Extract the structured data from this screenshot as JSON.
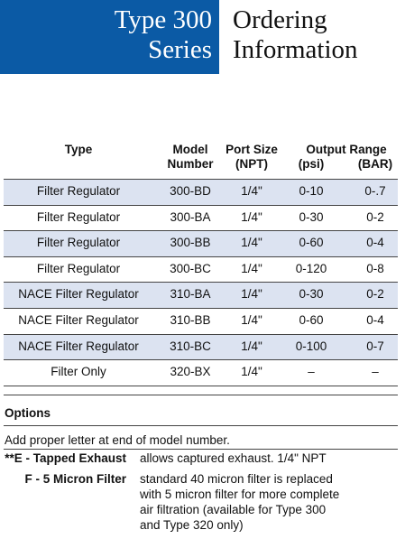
{
  "header": {
    "series_title": [
      "Type 300",
      "Series"
    ],
    "title": [
      "Ordering",
      "Information"
    ]
  },
  "table": {
    "columns": {
      "type": "Type",
      "model": [
        "Model",
        "Number"
      ],
      "port": [
        "Port Size",
        "(NPT)"
      ],
      "output": "Output Range",
      "psi": "(psi)",
      "bar": "(BAR)"
    },
    "rows": [
      [
        "Filter Regulator",
        "300-BD",
        "1/4\"",
        "0-10",
        "0-.7"
      ],
      [
        "Filter Regulator",
        "300-BA",
        "1/4\"",
        "0-30",
        "0-2"
      ],
      [
        "Filter Regulator",
        "300-BB",
        "1/4\"",
        "0-60",
        "0-4"
      ],
      [
        "Filter Regulator",
        "300-BC",
        "1/4\"",
        "0-120",
        "0-8"
      ],
      [
        "NACE Filter Regulator",
        "310-BA",
        "1/4\"",
        "0-30",
        "0-2"
      ],
      [
        "NACE Filter Regulator",
        "310-BB",
        "1/4\"",
        "0-60",
        "0-4"
      ],
      [
        "NACE Filter Regulator",
        "310-BC",
        "1/4\"",
        "0-100",
        "0-7"
      ],
      [
        "Filter Only",
        "320-BX",
        "1/4\"",
        "–",
        "–"
      ]
    ]
  },
  "options": {
    "title": "Options",
    "note": "Add proper letter at end of model number.",
    "items": [
      {
        "label": "**E - Tapped Exhaust",
        "lines": [
          "allows captured exhaust. 1/4\" NPT"
        ]
      },
      {
        "label": "F - 5 Micron Filter",
        "lines": [
          "standard 40 micron filter is replaced",
          "with 5 micron filter for more complete",
          "air filtration (available for Type 300",
          "and Type 320 only)"
        ]
      }
    ]
  }
}
